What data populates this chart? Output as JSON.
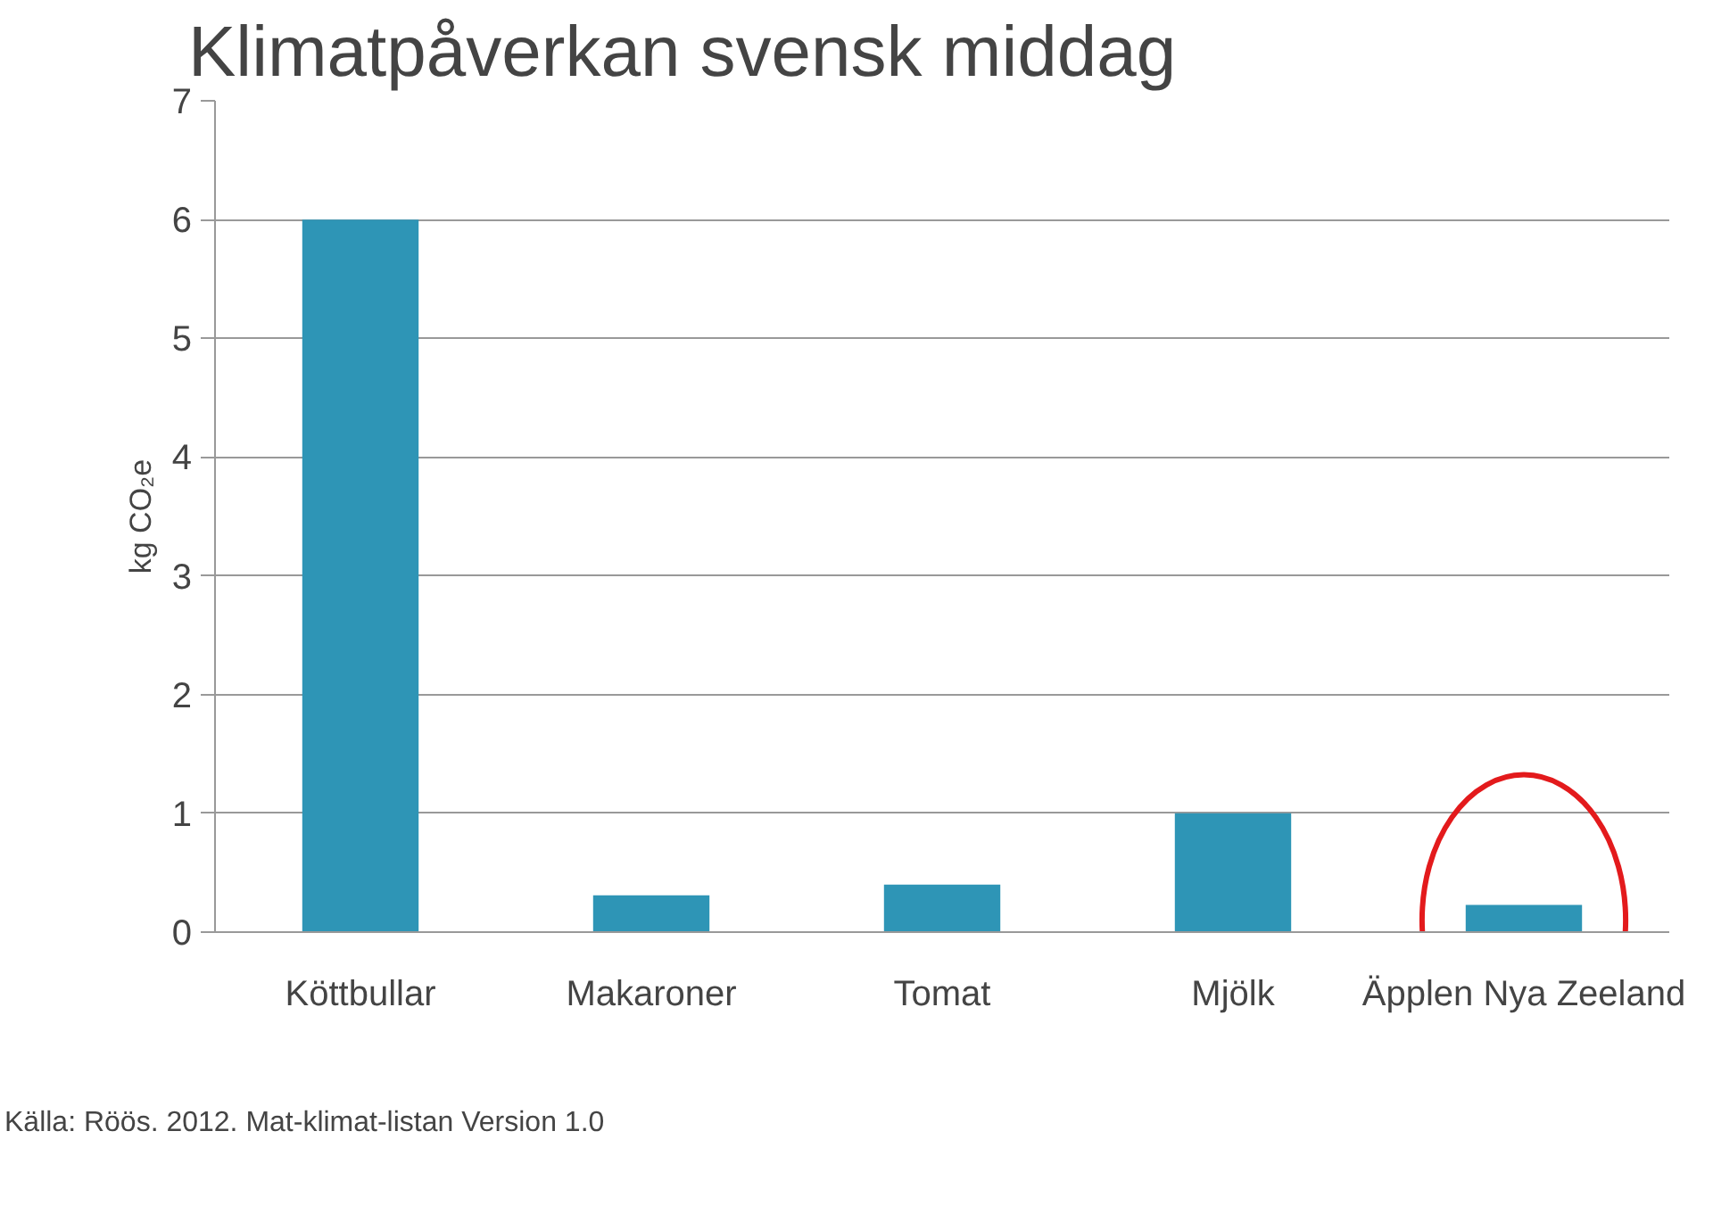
{
  "chart_data": {
    "type": "bar",
    "title": "Klimatpåverkan svensk middag",
    "ylabel": "kg CO₂e",
    "categories": [
      "Köttbullar",
      "Makaroner",
      "Tomat",
      "Mjölk",
      "Äpplen Nya Zeeland"
    ],
    "values": [
      6,
      0.31,
      0.4,
      1,
      0.23
    ],
    "color": "#2e95b6",
    "ylim": [
      0,
      7
    ],
    "yticks": [
      0,
      1,
      2,
      3,
      4,
      5,
      6,
      7
    ],
    "grid": "y",
    "annotations": [
      "Källa: Röös. 2012. Mat-klimat-listan Version 1.0"
    ]
  }
}
